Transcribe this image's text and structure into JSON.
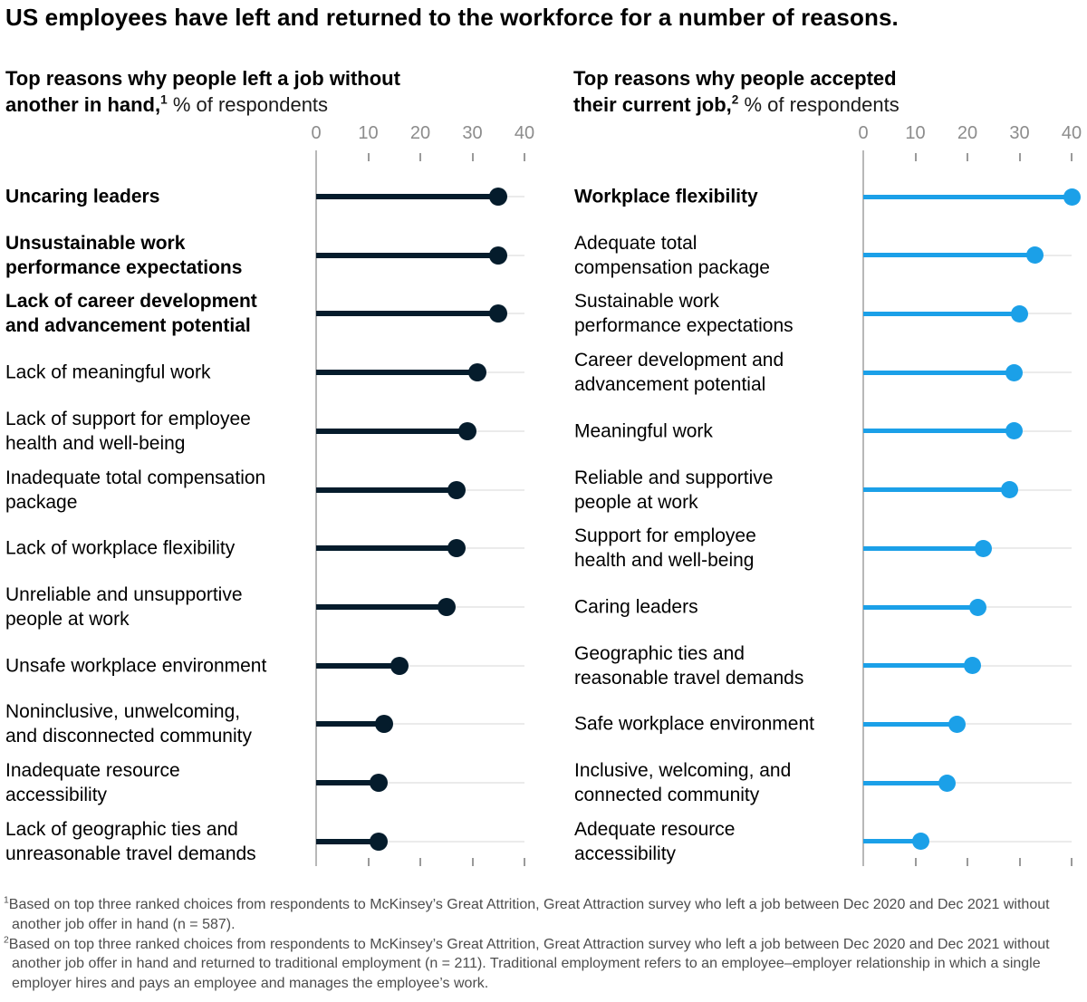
{
  "title": "US employees have left and returned to the workforce for a number of reasons.",
  "panels": [
    {
      "subtitle_bold": "Top reasons why people left a job without\nanother in hand,",
      "subtitle_sup": "1",
      "subtitle_rest": " % of respondents",
      "label_lines": [
        [
          "Uncaring leaders"
        ],
        [
          "Unsustainable work",
          "performance expectations"
        ],
        [
          "Lack of career development",
          "and advancement potential"
        ],
        [
          "Lack of meaningful work"
        ],
        [
          "Lack of support for employee",
          "health and well-being"
        ],
        [
          "Inadequate total compensation",
          "package"
        ],
        [
          "Lack of workplace flexibility"
        ],
        [
          "Unreliable and unsupportive",
          "people at work"
        ],
        [
          "Unsafe workplace environment"
        ],
        [
          "Noninclusive, unwelcoming,",
          "and disconnected community"
        ],
        [
          "Inadequate resource",
          "accessibility"
        ],
        [
          "Lack of geographic ties and",
          "unreasonable travel demands"
        ]
      ]
    },
    {
      "subtitle_bold": "Top reasons why people accepted\ntheir current job,",
      "subtitle_sup": "2",
      "subtitle_rest": " % of respondents",
      "label_lines": [
        [
          "Workplace flexibility"
        ],
        [
          "Adequate total",
          "compensation package"
        ],
        [
          "Sustainable work",
          "performance expectations"
        ],
        [
          "Career development and",
          "advancement potential"
        ],
        [
          "Meaningful work"
        ],
        [
          "Reliable and supportive",
          "people at work"
        ],
        [
          "Support for employee",
          "health and well-being"
        ],
        [
          "Caring leaders"
        ],
        [
          "Geographic ties and",
          "reasonable travel demands"
        ],
        [
          "Safe workplace environment"
        ],
        [
          "Inclusive, welcoming, and",
          "connected community"
        ],
        [
          "Adequate resource",
          "accessibility"
        ]
      ]
    }
  ],
  "chart_data": [
    {
      "type": "bar",
      "subtype": "horizontal-lollipop",
      "title": "Top reasons why people left a job without another in hand",
      "unit": "% of respondents",
      "footnote_ref": "1",
      "color": "#051C2C",
      "track_color": "#EBEBEB",
      "xlim": [
        0,
        40
      ],
      "xticks": [
        0,
        10,
        20,
        30,
        40
      ],
      "grid": false,
      "legend": "none",
      "categories": [
        "Uncaring leaders",
        "Unsustainable work performance expectations",
        "Lack of career development and advancement potential",
        "Lack of meaningful work",
        "Lack of support for employee health and well-being",
        "Inadequate total compensation package",
        "Lack of workplace flexibility",
        "Unreliable and unsupportive people at work",
        "Unsafe workplace environment",
        "Noninclusive, unwelcoming, and disconnected community",
        "Inadequate resource accessibility",
        "Lack of geographic ties and unreasonable travel demands"
      ],
      "values": [
        35,
        35,
        35,
        31,
        29,
        27,
        27,
        25,
        16,
        13,
        12,
        12
      ],
      "bold_categories": [
        0,
        1,
        2
      ]
    },
    {
      "type": "bar",
      "subtype": "horizontal-lollipop",
      "title": "Top reasons why people accepted their current job",
      "unit": "% of respondents",
      "footnote_ref": "2",
      "color": "#1BA0E8",
      "track_color": "#EBEBEB",
      "xlim": [
        0,
        40
      ],
      "xticks": [
        0,
        10,
        20,
        30,
        40
      ],
      "grid": false,
      "legend": "none",
      "categories": [
        "Workplace flexibility",
        "Adequate total compensation package",
        "Sustainable work performance expectations",
        "Career development and advancement potential",
        "Meaningful work",
        "Reliable and supportive people at work",
        "Support for employee health and well-being",
        "Caring leaders",
        "Geographic ties and reasonable travel demands",
        "Safe workplace environment",
        "Inclusive, welcoming, and connected community",
        "Adequate resource accessibility"
      ],
      "values": [
        40,
        33,
        30,
        29,
        29,
        28,
        23,
        22,
        21,
        18,
        16,
        11
      ],
      "bold_categories": [
        0
      ]
    }
  ],
  "footnotes": [
    {
      "sup": "1",
      "text": "Based on top three ranked choices from respondents to McKinsey’s Great Attrition, Great Attraction survey who left a job between Dec 2020 and Dec 2021 without another job offer in hand (n = 587)."
    },
    {
      "sup": "2",
      "text": "Based on top three ranked choices from respondents to McKinsey’s Great Attrition, Great Attraction survey who left a job between Dec 2020 and Dec 2021 without another job offer in hand and returned to traditional employment (n = 211). Traditional employment refers to an employee–employer relationship in which a single employer hires and pays an employee and manages the employee’s work."
    }
  ]
}
